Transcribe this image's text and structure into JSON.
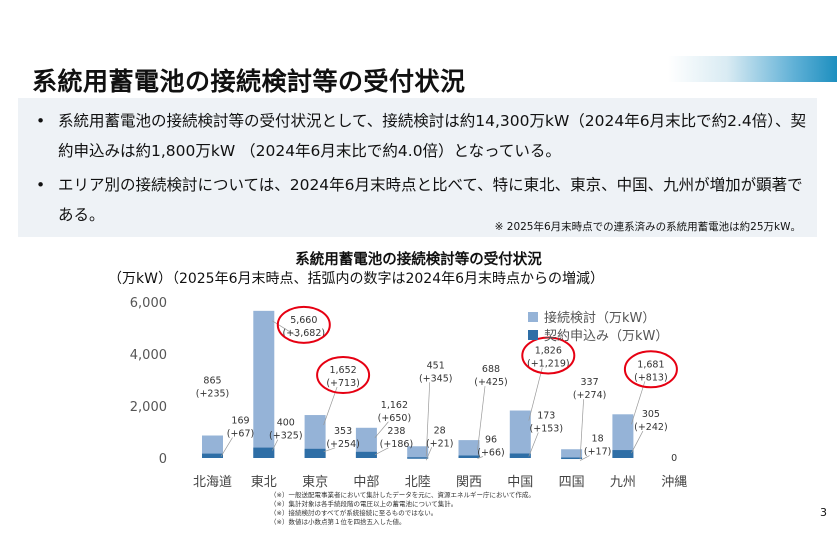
{
  "page": {
    "title": "系統用蓄電池の接続検討等の受付状況",
    "number": "3"
  },
  "summary": {
    "bullets": [
      "系統用蓄電池の接続検討等の受付状況として、接続検討は約14,300万kW（2024年6月末比で約2.4倍）、契約申込みは約1,800万kW （2024年6月末比で約4.0倍）となっている。",
      "エリア別の接続検討については、2024年6月末時点と比べて、特に東北、東京、中国、九州が増加が顕著である。"
    ],
    "bullet_glyph": "•",
    "note": "※ 2025年6月末時点での連系済みの系統用蓄電池は約25万kW。"
  },
  "chart_data": {
    "type": "bar",
    "title": "系統用蓄電池の接続検討等の受付状況",
    "subtitle": "（万kW）（2025年6月末時点、括弧内の数字は2024年6月末時点からの増減）",
    "categories": [
      "北海道",
      "東北",
      "東京",
      "中部",
      "北陸",
      "関西",
      "中国",
      "四国",
      "九州",
      "沖縄"
    ],
    "series": [
      {
        "name": "接続検討（万kW）",
        "color": "#95b3d7",
        "values": [
          865,
          5660,
          1652,
          1162,
          451,
          688,
          1826,
          337,
          1681,
          0
        ],
        "labels": [
          "865",
          "5,660",
          "1,652",
          "1,162",
          "451",
          "688",
          "1,826",
          "337",
          "1,681",
          ""
        ],
        "changes": [
          "(+235)",
          "(+3,682)",
          "(+713)",
          "(+650)",
          "(+345)",
          "(+425)",
          "(+1,219)",
          "(+274)",
          "(+813)",
          ""
        ]
      },
      {
        "name": "契約申込み（万kW）",
        "color": "#2e6ea6",
        "values": [
          169,
          400,
          353,
          238,
          28,
          96,
          173,
          18,
          305,
          0
        ],
        "labels": [
          "169",
          "400",
          "353",
          "238",
          "28",
          "96",
          "173",
          "18",
          "305",
          "0"
        ],
        "changes": [
          "(+67)",
          "(+325)",
          "(+254)",
          "(+186)",
          "(+21)",
          "(+66)",
          "(+153)",
          "(+17)",
          "(+242)",
          ""
        ]
      }
    ],
    "yticks": [
      "0",
      "2,000",
      "4,000",
      "6,000"
    ],
    "ylim": [
      0,
      6000
    ],
    "highlighted": [
      "東北",
      "東京",
      "中国",
      "九州"
    ],
    "highlight_color": "#e60012",
    "legend_position": "top-right",
    "grid": false
  },
  "footnotes": [
    "（※）一般送配電事業者において集計したデータを元に、資源エネルギー庁において作成。",
    "（※）集計対象は各手続段階の電圧以上の蓄電池について集計。",
    "（※）接続検討のすべてが系統接続に至るものではない。",
    "（※）数値は小数点第１位を四捨五入した値。"
  ]
}
